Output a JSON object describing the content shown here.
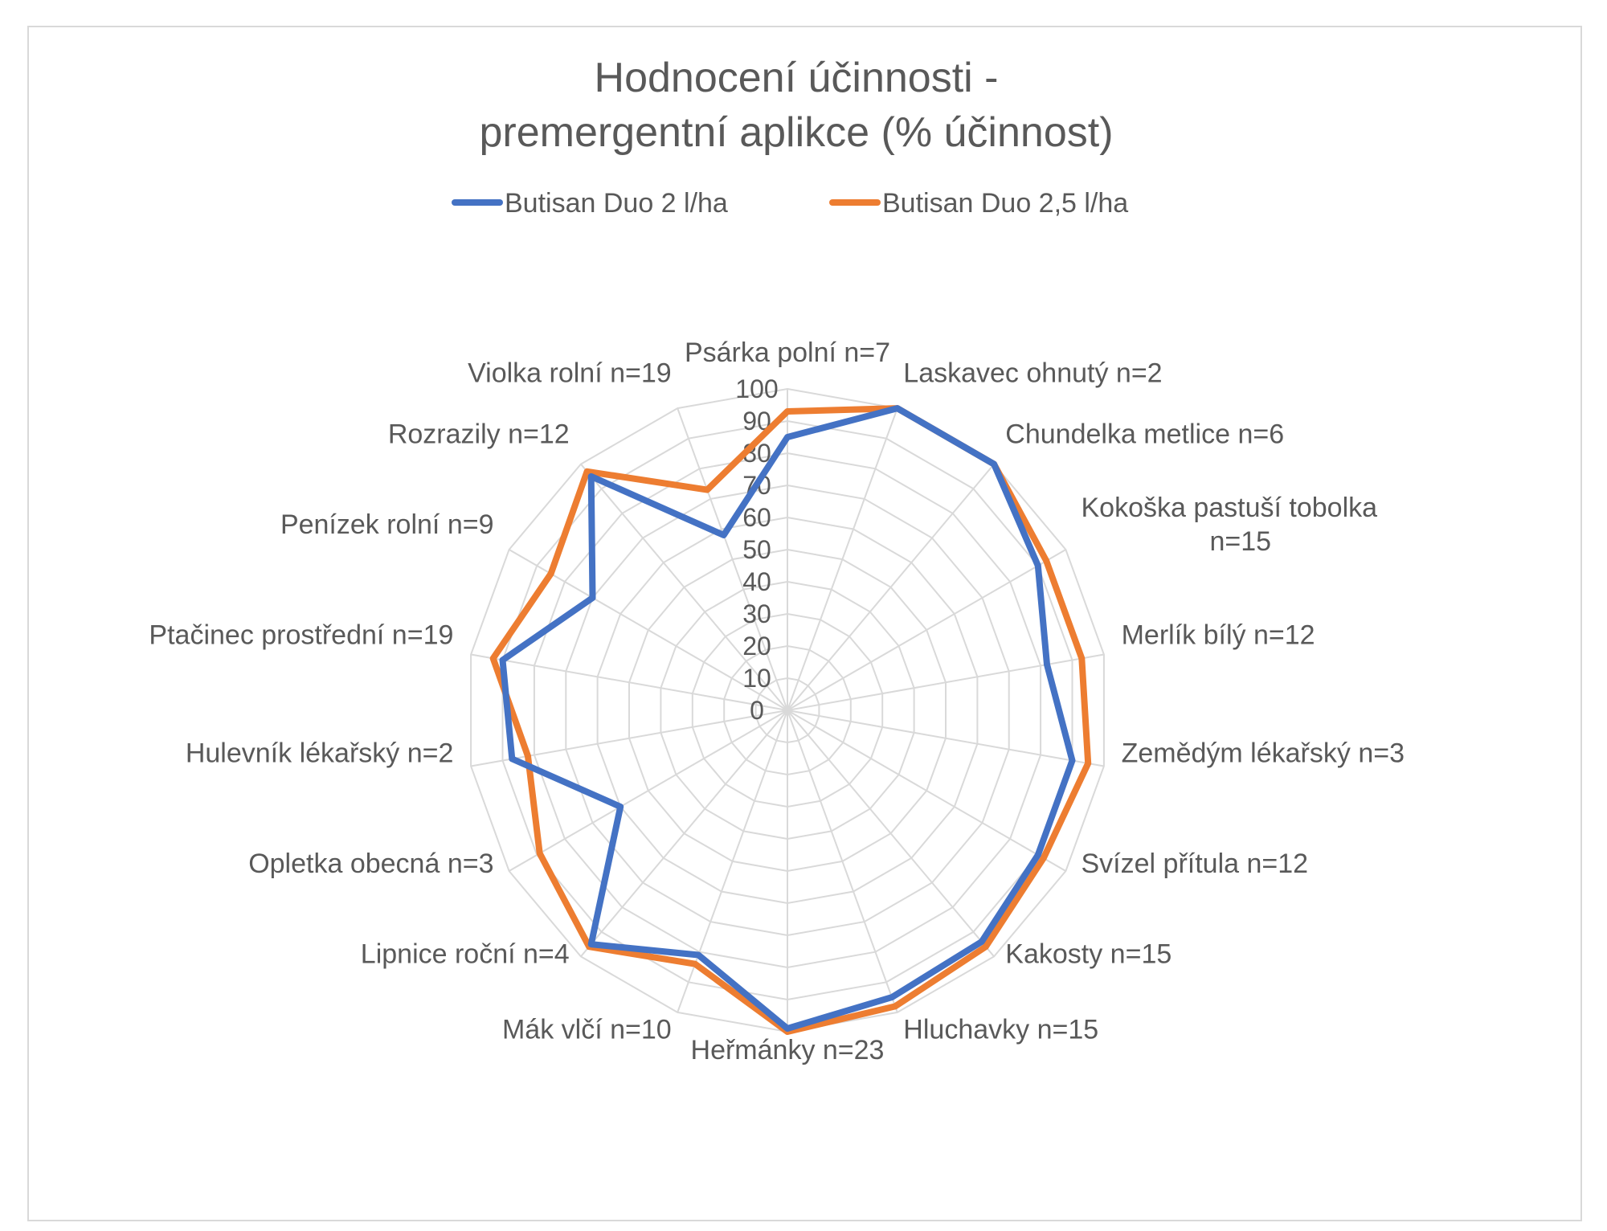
{
  "chart_data": {
    "type": "radar",
    "title_lines": [
      "Hodnocení účinnosti -",
      "premergentní aplikce (% účinnost)"
    ],
    "categories": [
      "Psárka polní n=7",
      "Laskavec ohnutý n=2",
      "Chundelka metlice n=6",
      "Kokoška pastuší tobolka n=15",
      "Merlík bílý n=12",
      "Zemědým lékařský n=3",
      "Svízel přítula n=12",
      "Kakosty n=15",
      "Hluchavky n=15",
      "Heřmánky n=23",
      "Mák vlčí n=10",
      "Lipnice roční n=4",
      "Opletka obecná n=3",
      "Hulevník lékařský n=2",
      "Ptačinec prostřední n=19",
      "Penízek rolní n=9",
      "Rozrazily n=12",
      "Violka rolní n=19"
    ],
    "category_label_lines": [
      [
        "Psárka polní n=7"
      ],
      [
        "Laskavec ohnutý n=2"
      ],
      [
        "Chundelka metlice n=6"
      ],
      [
        "Kokoška pastuší tobolka",
        "n=15"
      ],
      [
        "Merlík bílý n=12"
      ],
      [
        "Zemědým lékařský n=3"
      ],
      [
        "Svízel přítula n=12"
      ],
      [
        "Kakosty n=15"
      ],
      [
        "Hluchavky n=15"
      ],
      [
        "Heřmánky n=23"
      ],
      [
        "Mák vlčí n=10"
      ],
      [
        "Lipnice roční n=4"
      ],
      [
        "Opletka obecná n=3"
      ],
      [
        "Hulevník lékařský n=2"
      ],
      [
        "Ptačinec prostřední n=19"
      ],
      [
        "Penízek rolní n=9"
      ],
      [
        "Rozrazily n=12"
      ],
      [
        "Violka rolní n=19"
      ]
    ],
    "series": [
      {
        "name": "Butisan Duo 2 l/ha",
        "color": "#4472C4",
        "values": [
          85,
          100,
          100,
          90,
          82,
          90,
          90,
          94,
          95,
          99,
          81,
          95,
          60,
          87,
          90,
          70,
          95,
          58
        ]
      },
      {
        "name": "Butisan Duo 2,5 l/ha",
        "color": "#ED7D31",
        "values": [
          93,
          100,
          100,
          93,
          93,
          95,
          92,
          96,
          98,
          100,
          84,
          96,
          89,
          82,
          93,
          85,
          97,
          73
        ]
      }
    ],
    "r_axis": {
      "min": 0,
      "max": 100,
      "step": 10,
      "ticks": [
        "0",
        "10",
        "20",
        "30",
        "40",
        "50",
        "60",
        "70",
        "80",
        "90",
        "100"
      ]
    },
    "grid": true,
    "legend_position": "top"
  }
}
